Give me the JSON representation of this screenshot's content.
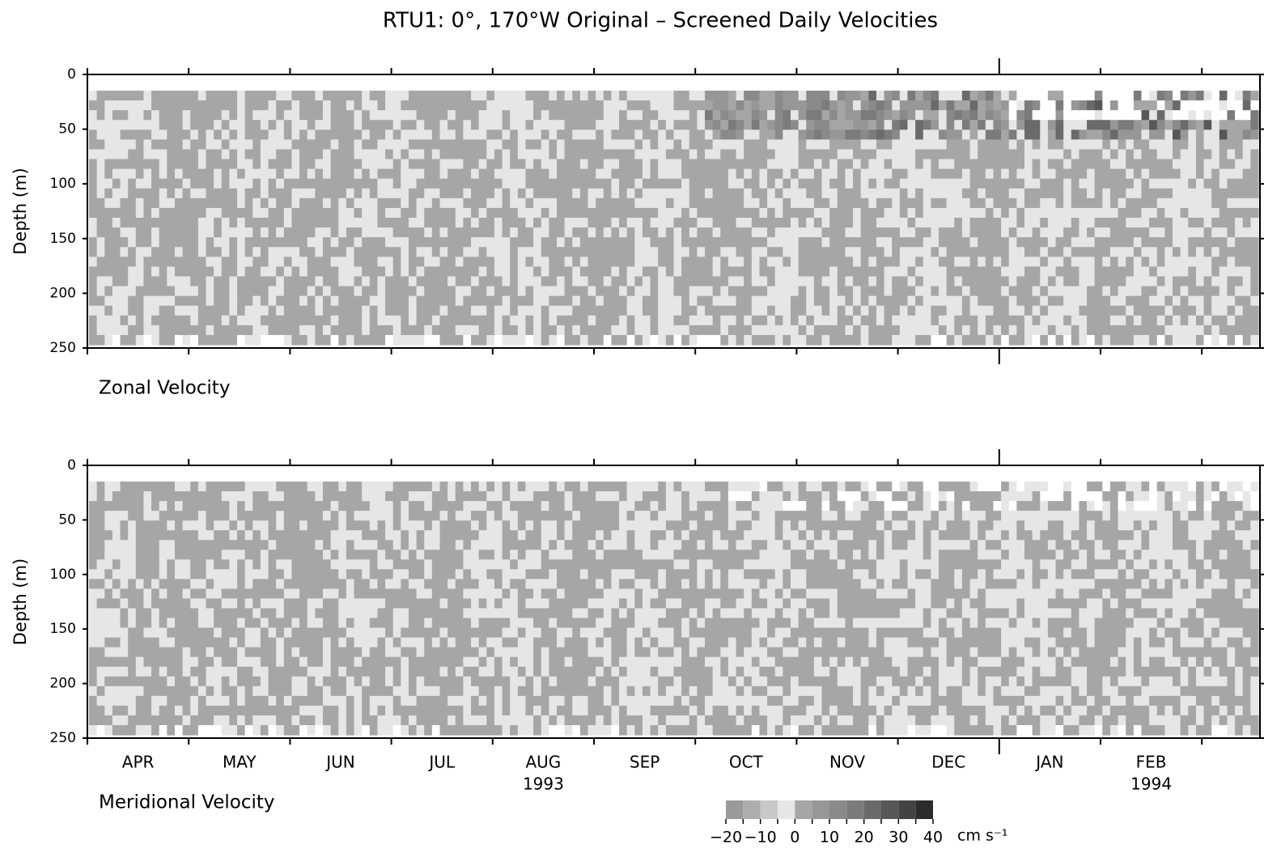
{
  "title": "RTU1:  0°, 170°W     Original – Screened  Daily  Velocities",
  "chart_data": [
    {
      "type": "contour",
      "label": "Zonal Velocity",
      "y_label": "Depth (m)",
      "ylim": [
        0,
        250
      ],
      "yticks": [
        0,
        50,
        100,
        150,
        200,
        250
      ]
    },
    {
      "type": "contour",
      "label": "Meridional Velocity",
      "y_label": "Depth (m)",
      "ylim": [
        0,
        250
      ],
      "yticks": [
        0,
        50,
        100,
        150,
        200,
        250
      ],
      "categories": [
        "APR",
        "MAY",
        "JUN",
        "JUL",
        "AUG",
        "SEP",
        "OCT",
        "NOV",
        "DEC",
        "JAN",
        "FEB",
        null
      ],
      "year_labels": [
        null,
        null,
        null,
        null,
        "1993",
        null,
        null,
        null,
        null,
        null,
        "1994",
        null
      ]
    }
  ],
  "colorbar": {
    "levels": [
      -20,
      -15,
      -10,
      -5,
      0,
      5,
      10,
      15,
      20,
      25,
      30,
      35,
      40
    ],
    "colors": [
      "#9a9a9a",
      "#adadad",
      "#c8c8c8",
      "#e6e6e6",
      "#a6a6a6",
      "#979797",
      "#8a8a8a",
      "#7b7b7b",
      "#6a6a6a",
      "#575757",
      "#434343",
      "#2c2c2c"
    ],
    "ticks": [
      {
        "value": -20,
        "label": "−20"
      },
      {
        "value": -10,
        "label": "−10"
      },
      0,
      10,
      20,
      30,
      40
    ],
    "unit": "cm s⁻¹"
  }
}
